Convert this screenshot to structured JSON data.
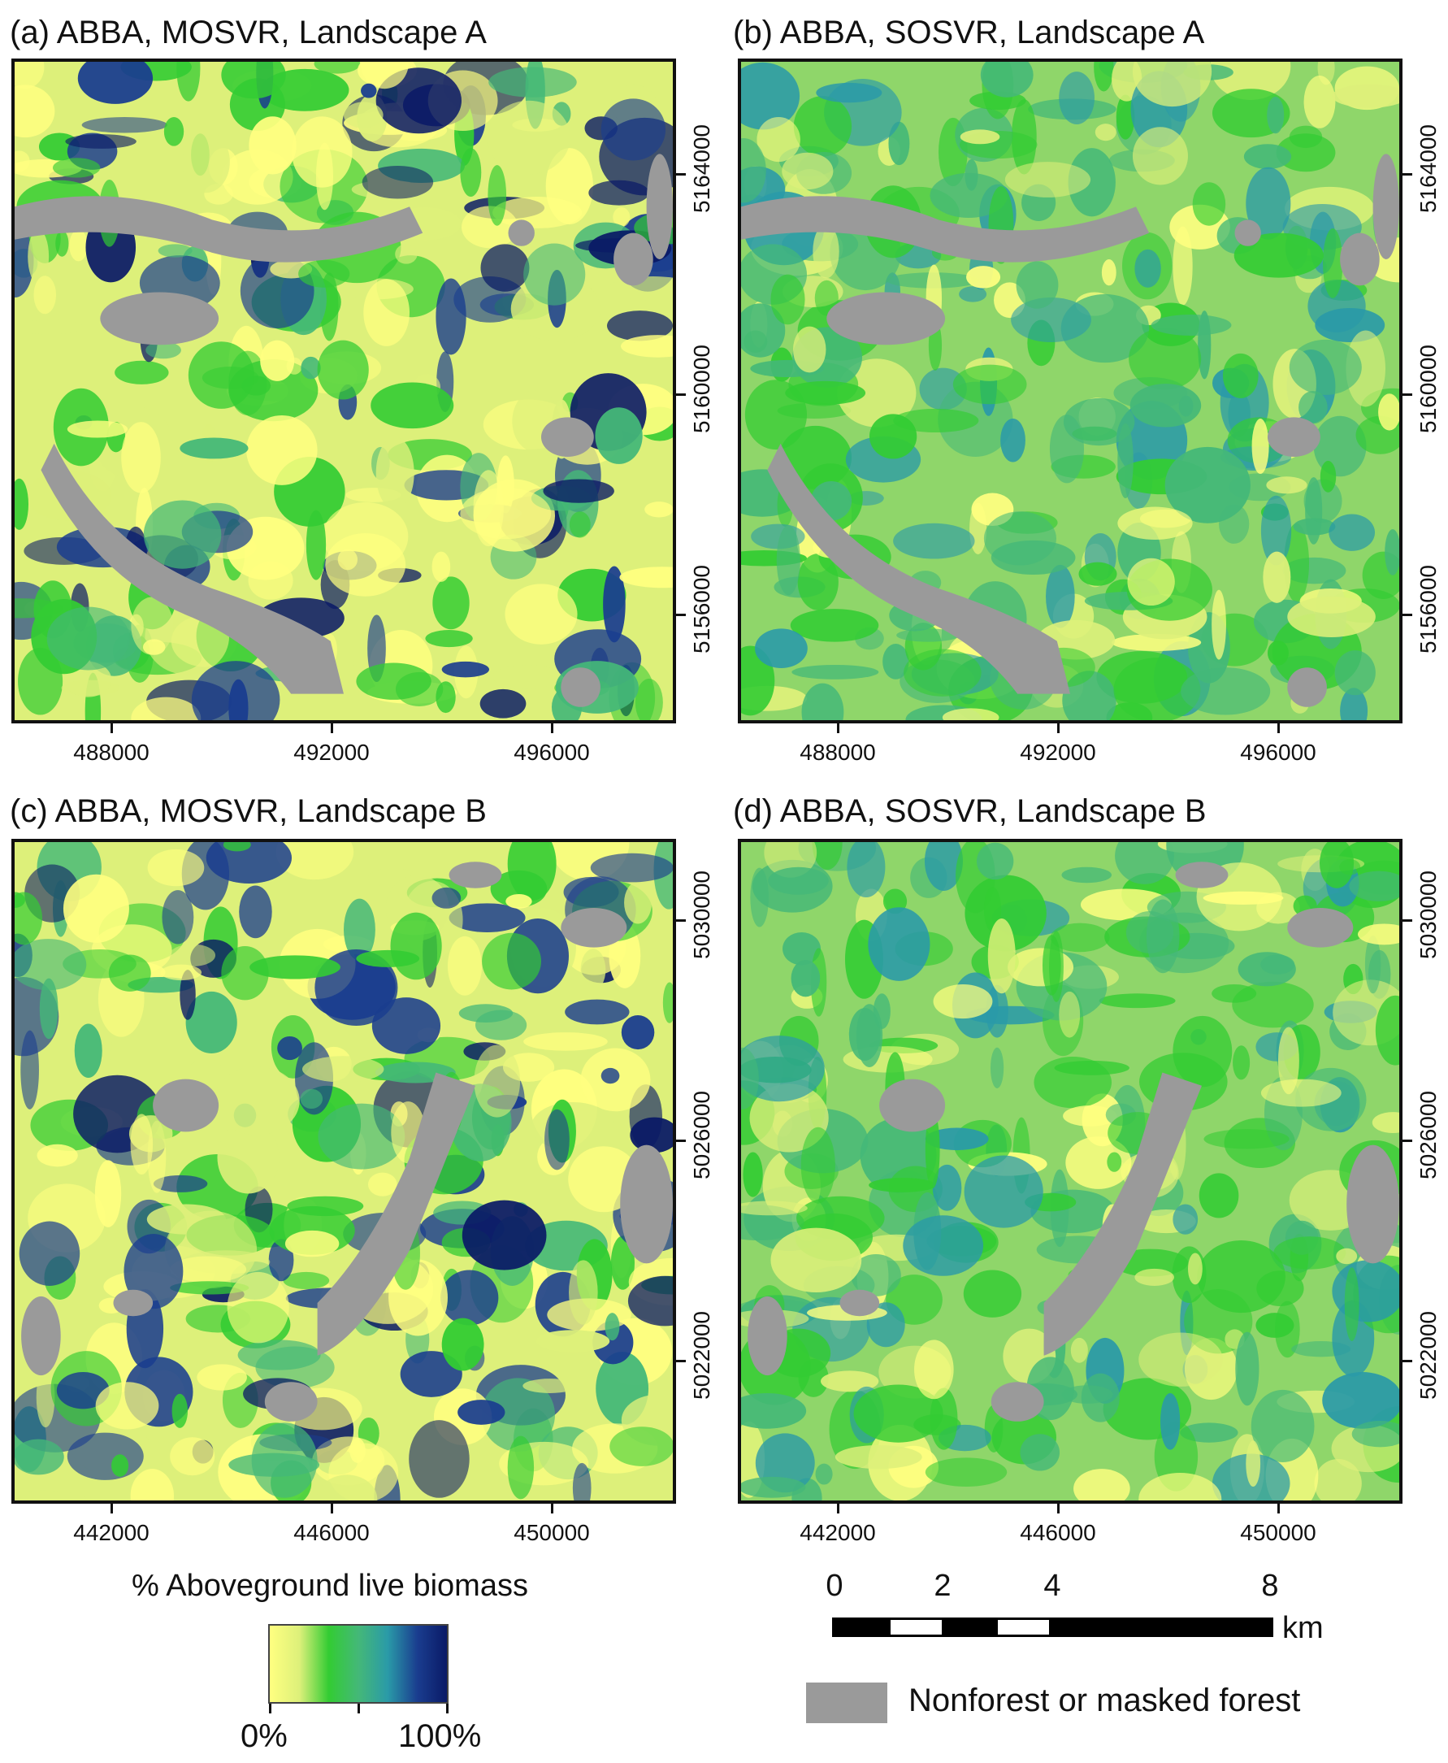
{
  "panels": [
    {
      "title": "(a) ABBA, MOSVR, Landscape A",
      "style": "mosvr",
      "xticks": [
        "488000",
        "492000",
        "496000"
      ],
      "yticks": [
        "5164000",
        "5160000",
        "5156000"
      ]
    },
    {
      "title": "(b) ABBA, SOSVR, Landscape A",
      "style": "sosvr",
      "xticks": [
        "488000",
        "492000",
        "496000"
      ],
      "yticks": [
        "5164000",
        "5160000",
        "5156000"
      ]
    },
    {
      "title": "(c) ABBA, MOSVR, Landscape B",
      "style": "mosvr",
      "xticks": [
        "442000",
        "446000",
        "450000"
      ],
      "yticks": [
        "5030000",
        "5026000",
        "5022000"
      ]
    },
    {
      "title": "(d) ABBA, SOSVR, Landscape B",
      "style": "sosvr",
      "xticks": [
        "442000",
        "446000",
        "450000"
      ],
      "yticks": [
        "5030000",
        "5026000",
        "5022000"
      ]
    }
  ],
  "legend": {
    "title": "% Aboveground live biomass",
    "min_label": "0%",
    "max_label": "100%",
    "colors": [
      "#ffff80",
      "#ddf07a",
      "#33cc33",
      "#44b878",
      "#2a9aa8",
      "#1a3d8f",
      "#0a1a66"
    ]
  },
  "scalebar": {
    "ticks": [
      "0",
      "2",
      "4",
      "8"
    ],
    "unit": "km"
  },
  "mask_legend": {
    "label": "Nonforest or masked forest",
    "color": "#9a9a9a"
  }
}
